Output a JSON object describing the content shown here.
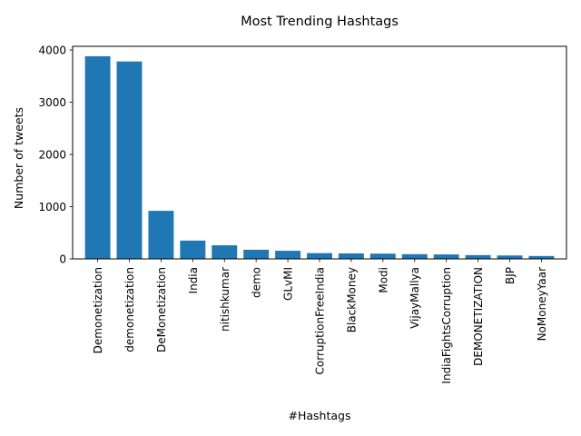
{
  "chart_data": {
    "type": "bar",
    "title": "Most Trending Hashtags",
    "xlabel": "#Hashtags",
    "ylabel": "Number of tweets",
    "categories": [
      "Demonetization",
      "demonetization",
      "DeMonetization",
      "India",
      "nitishkumar",
      "demo",
      "GLvMI",
      "CorruptionFreeIndia",
      "BlackMoney",
      "Modi",
      "VijayMallya",
      "IndiaFightsCorruption",
      "DEMONETIZATION",
      "BJP",
      "NoMoneyYaar"
    ],
    "values": [
      3880,
      3780,
      920,
      350,
      260,
      175,
      155,
      110,
      105,
      100,
      90,
      85,
      72,
      65,
      55
    ],
    "ylim": [
      0,
      4070
    ],
    "yticks": [
      0,
      1000,
      2000,
      3000,
      4000
    ],
    "bar_color": "#1f77b4",
    "grid": false,
    "legend": "none"
  }
}
